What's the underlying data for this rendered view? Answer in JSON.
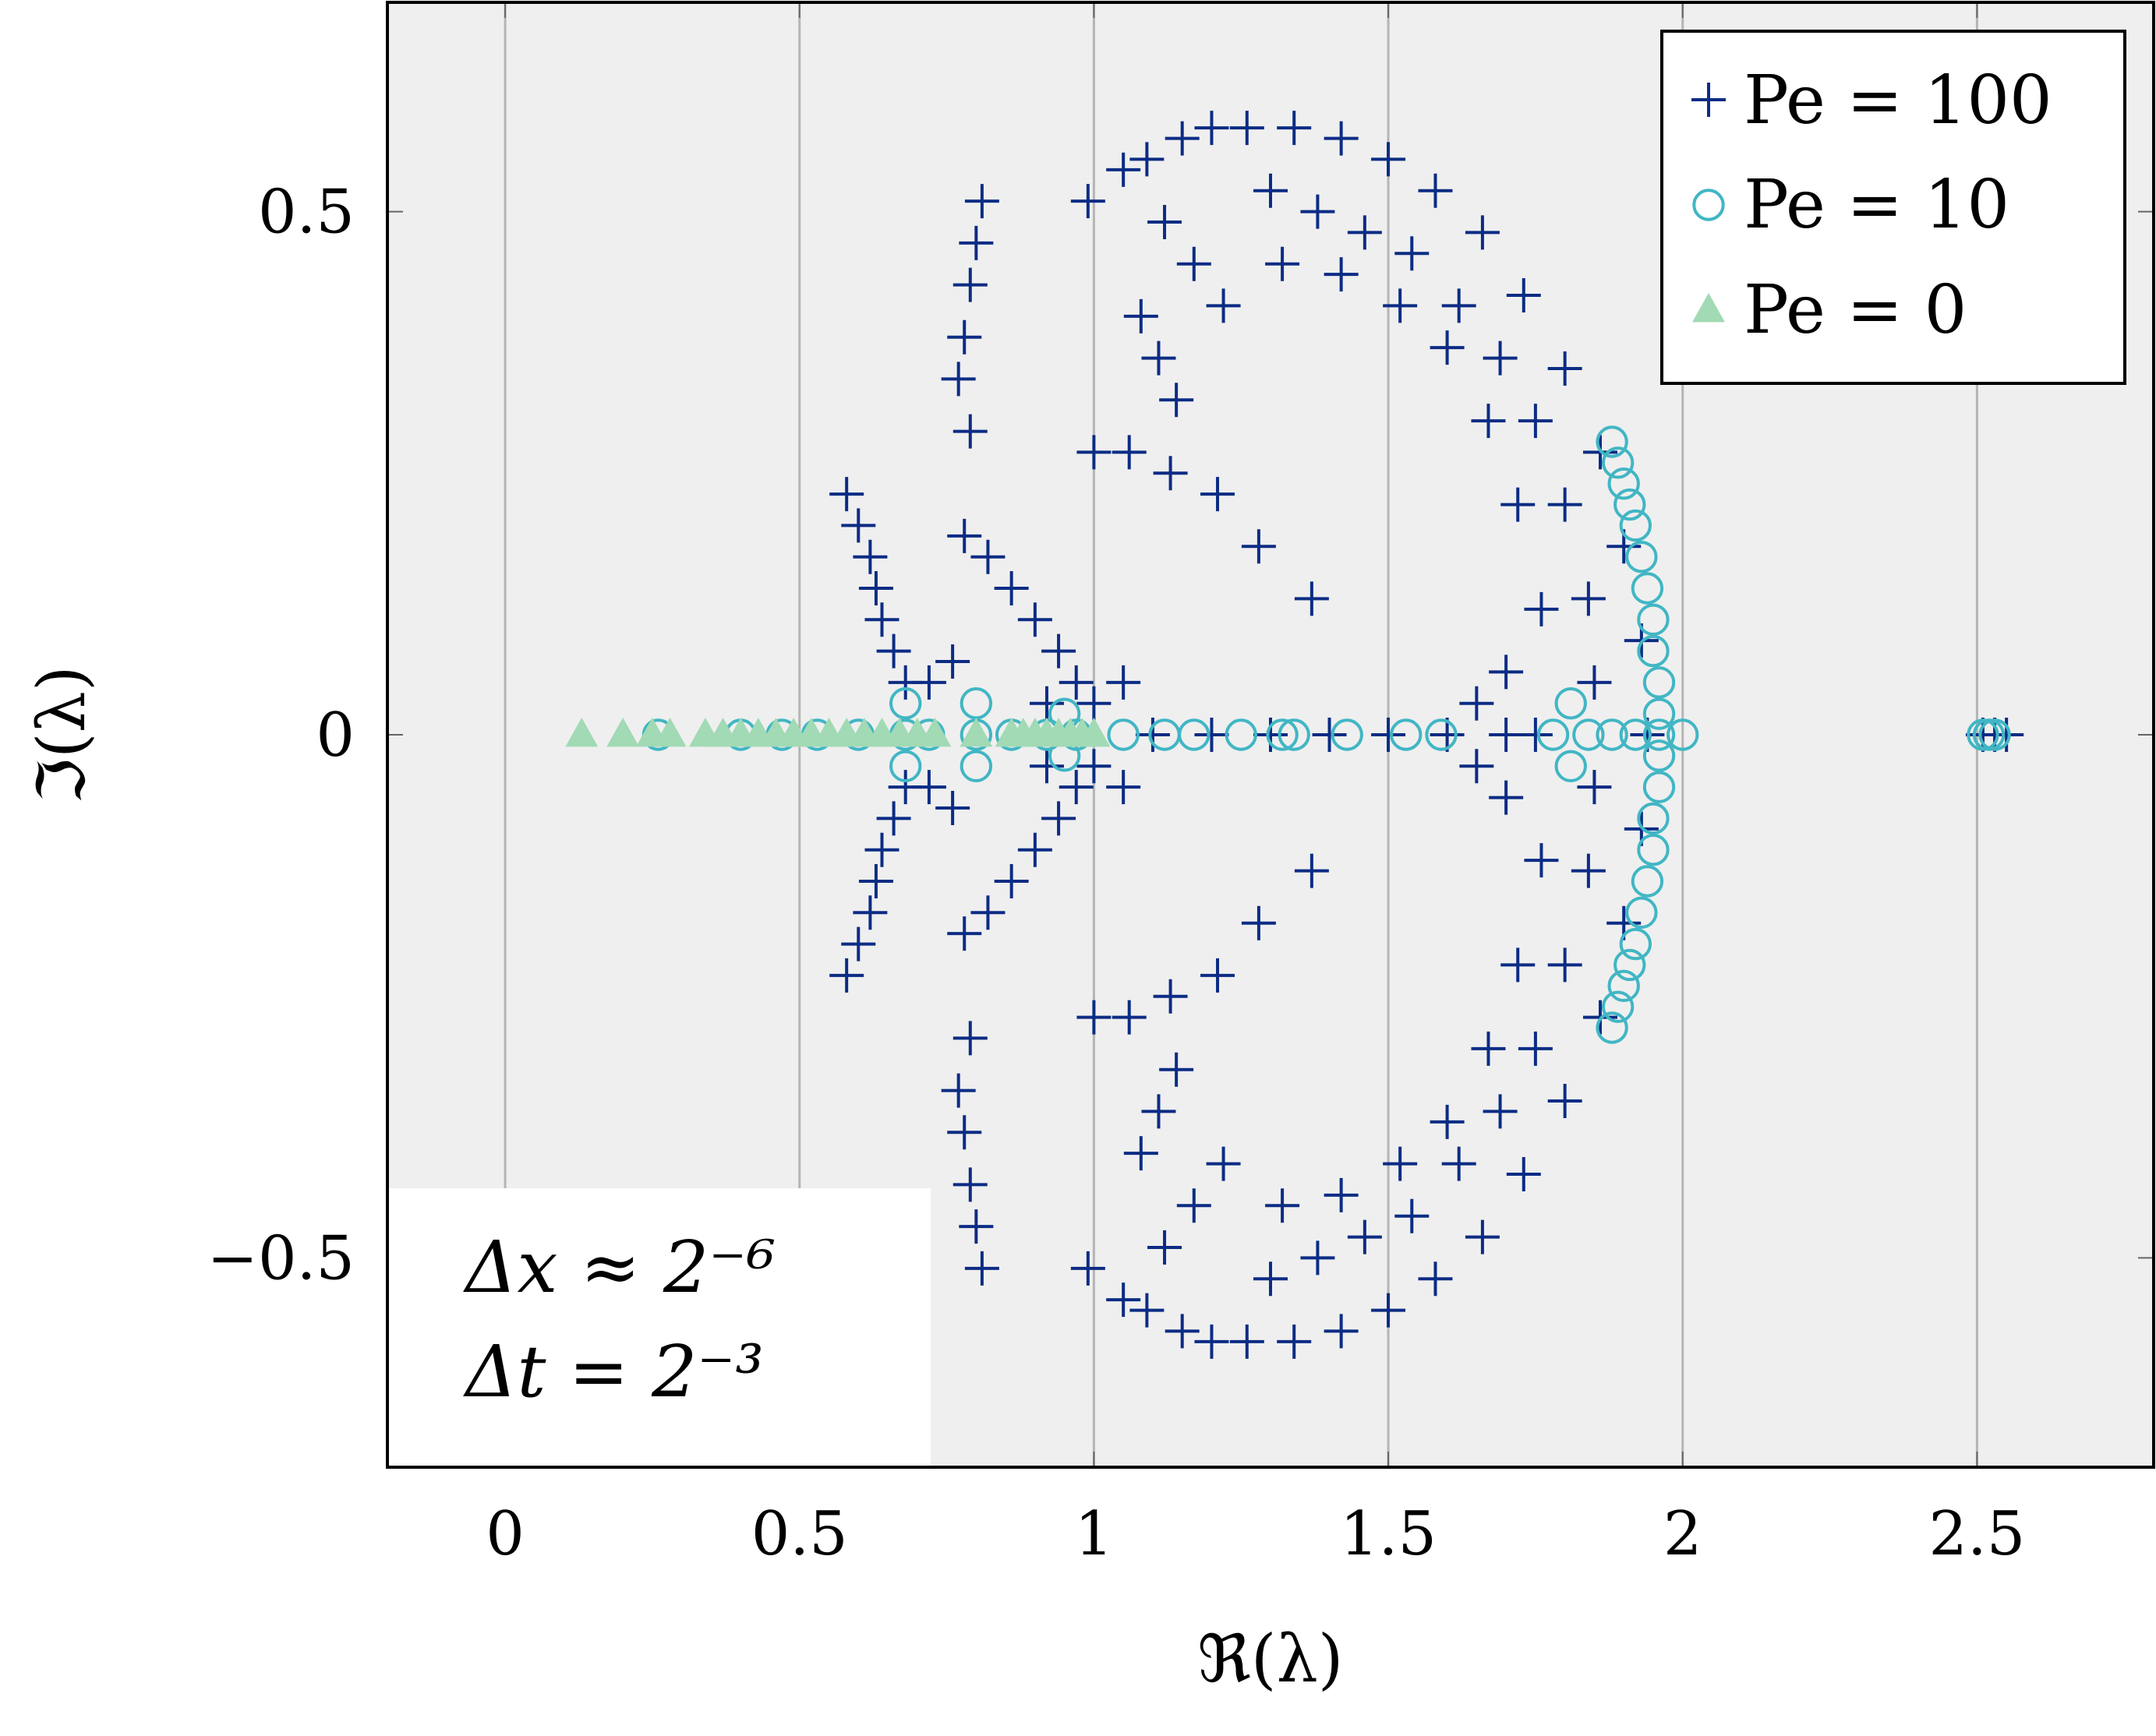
{
  "chart_data": {
    "type": "scatter",
    "xlabel": "ℜ(λ)",
    "ylabel": "ℑ(λ)",
    "xlim": [
      -0.2,
      2.8
    ],
    "ylim": [
      -0.7,
      0.7
    ],
    "x_ticks": [
      0,
      0.5,
      1,
      1.5,
      2,
      2.5
    ],
    "x_tick_labels": [
      "0",
      "0.5",
      "1",
      "1.5",
      "2",
      "2.5"
    ],
    "y_ticks": [
      -0.5,
      0,
      0.5
    ],
    "y_tick_labels": [
      "−0.5",
      "0",
      "0.5"
    ],
    "grid": "vertical-major",
    "background": "#efefef",
    "legend_position": "top-right",
    "annotations": [
      "Δx ≈ 2⁻⁶",
      "Δt = 2⁻³"
    ],
    "series": [
      {
        "name": "Pe = 100",
        "marker": "plus",
        "color": "#0c2c84",
        "points": [
          [
            0.81,
            0.51
          ],
          [
            0.8,
            0.47
          ],
          [
            0.79,
            0.43
          ],
          [
            0.78,
            0.38
          ],
          [
            0.77,
            0.34
          ],
          [
            0.79,
            0.29
          ],
          [
            0.99,
            0.51
          ],
          [
            1.0,
            0.27
          ],
          [
            1.06,
            0.27
          ],
          [
            1.13,
            0.25
          ],
          [
            1.21,
            0.23
          ],
          [
            1.28,
            0.18
          ],
          [
            1.37,
            0.13
          ],
          [
            0.58,
            0.23
          ],
          [
            0.6,
            0.2
          ],
          [
            0.62,
            0.17
          ],
          [
            0.63,
            0.14
          ],
          [
            0.64,
            0.11
          ],
          [
            0.66,
            0.08
          ],
          [
            0.68,
            0.05
          ],
          [
            0.78,
            0.19
          ],
          [
            0.82,
            0.17
          ],
          [
            0.86,
            0.14
          ],
          [
            0.9,
            0.11
          ],
          [
            0.94,
            0.08
          ],
          [
            0.97,
            0.05
          ],
          [
            1.0,
            0.03
          ],
          [
            0.72,
            0.05
          ],
          [
            0.76,
            0.07
          ],
          [
            0.92,
            0.03
          ],
          [
            1.05,
            0.05
          ],
          [
            0.58,
            -0.23
          ],
          [
            0.6,
            -0.2
          ],
          [
            0.62,
            -0.17
          ],
          [
            0.63,
            -0.14
          ],
          [
            0.64,
            -0.11
          ],
          [
            0.66,
            -0.08
          ],
          [
            0.68,
            -0.05
          ],
          [
            0.78,
            -0.19
          ],
          [
            0.82,
            -0.17
          ],
          [
            0.86,
            -0.14
          ],
          [
            0.9,
            -0.11
          ],
          [
            0.94,
            -0.08
          ],
          [
            0.97,
            -0.05
          ],
          [
            1.0,
            -0.03
          ],
          [
            0.72,
            -0.05
          ],
          [
            0.76,
            -0.07
          ],
          [
            0.92,
            -0.03
          ],
          [
            1.05,
            -0.05
          ],
          [
            0.81,
            -0.51
          ],
          [
            0.8,
            -0.47
          ],
          [
            0.79,
            -0.43
          ],
          [
            0.78,
            -0.38
          ],
          [
            0.77,
            -0.34
          ],
          [
            0.79,
            -0.29
          ],
          [
            0.99,
            -0.51
          ],
          [
            1.0,
            -0.27
          ],
          [
            1.06,
            -0.27
          ],
          [
            1.13,
            -0.25
          ],
          [
            1.21,
            -0.23
          ],
          [
            1.28,
            -0.18
          ],
          [
            1.37,
            -0.13
          ],
          [
            1.05,
            0.54
          ],
          [
            1.09,
            0.55
          ],
          [
            1.15,
            0.57
          ],
          [
            1.2,
            0.58
          ],
          [
            1.12,
            0.49
          ],
          [
            1.17,
            0.45
          ],
          [
            1.22,
            0.41
          ],
          [
            1.11,
            0.36
          ],
          [
            1.14,
            0.32
          ],
          [
            1.08,
            0.4
          ],
          [
            1.05,
            -0.54
          ],
          [
            1.09,
            -0.55
          ],
          [
            1.15,
            -0.57
          ],
          [
            1.2,
            -0.58
          ],
          [
            1.12,
            -0.49
          ],
          [
            1.17,
            -0.45
          ],
          [
            1.22,
            -0.41
          ],
          [
            1.11,
            -0.36
          ],
          [
            1.14,
            -0.32
          ],
          [
            1.08,
            -0.4
          ],
          [
            1.26,
            0.58
          ],
          [
            1.34,
            0.58
          ],
          [
            1.42,
            0.57
          ],
          [
            1.5,
            0.55
          ],
          [
            1.58,
            0.52
          ],
          [
            1.66,
            0.48
          ],
          [
            1.73,
            0.42
          ],
          [
            1.8,
            0.35
          ],
          [
            1.86,
            0.27
          ],
          [
            1.9,
            0.18
          ],
          [
            1.93,
            0.09
          ],
          [
            1.94,
            0.0
          ],
          [
            1.93,
            -0.09
          ],
          [
            1.9,
            -0.18
          ],
          [
            1.86,
            -0.27
          ],
          [
            1.8,
            -0.35
          ],
          [
            1.73,
            -0.42
          ],
          [
            1.66,
            -0.48
          ],
          [
            1.58,
            -0.52
          ],
          [
            1.5,
            -0.55
          ],
          [
            1.42,
            -0.57
          ],
          [
            1.34,
            -0.58
          ],
          [
            1.26,
            -0.58
          ],
          [
            1.3,
            0.52
          ],
          [
            1.38,
            0.5
          ],
          [
            1.46,
            0.48
          ],
          [
            1.54,
            0.46
          ],
          [
            1.62,
            0.41
          ],
          [
            1.69,
            0.36
          ],
          [
            1.75,
            0.3
          ],
          [
            1.8,
            0.22
          ],
          [
            1.84,
            0.13
          ],
          [
            1.85,
            0.05
          ],
          [
            1.3,
            -0.52
          ],
          [
            1.38,
            -0.5
          ],
          [
            1.46,
            -0.48
          ],
          [
            1.54,
            -0.46
          ],
          [
            1.62,
            -0.41
          ],
          [
            1.69,
            -0.36
          ],
          [
            1.75,
            -0.3
          ],
          [
            1.8,
            -0.22
          ],
          [
            1.84,
            -0.13
          ],
          [
            1.85,
            -0.05
          ],
          [
            1.32,
            0.45
          ],
          [
            1.42,
            0.44
          ],
          [
            1.52,
            0.41
          ],
          [
            1.6,
            0.37
          ],
          [
            1.67,
            0.3
          ],
          [
            1.72,
            0.22
          ],
          [
            1.76,
            0.12
          ],
          [
            1.7,
            0.06
          ],
          [
            1.65,
            0.03
          ],
          [
            1.32,
            -0.45
          ],
          [
            1.42,
            -0.44
          ],
          [
            1.52,
            -0.41
          ],
          [
            1.6,
            -0.37
          ],
          [
            1.67,
            -0.3
          ],
          [
            1.72,
            -0.22
          ],
          [
            1.76,
            -0.12
          ],
          [
            1.7,
            -0.06
          ],
          [
            1.65,
            -0.03
          ],
          [
            1.1,
            0.0
          ],
          [
            1.2,
            0.0
          ],
          [
            1.3,
            0.0
          ],
          [
            1.4,
            0.0
          ],
          [
            1.5,
            0.0
          ],
          [
            1.6,
            0.0
          ],
          [
            1.7,
            0.0
          ],
          [
            1.75,
            0.0
          ],
          [
            2.51,
            0.0
          ],
          [
            2.53,
            0.0
          ],
          [
            2.55,
            0.0
          ]
        ]
      },
      {
        "name": "Pe = 10",
        "marker": "circle",
        "color": "#41b6c4",
        "points": [
          [
            0.26,
            0.0
          ],
          [
            0.4,
            0.0
          ],
          [
            0.47,
            0.0
          ],
          [
            0.53,
            0.0
          ],
          [
            0.6,
            0.0
          ],
          [
            0.68,
            0.0
          ],
          [
            0.72,
            0.0
          ],
          [
            0.8,
            0.0
          ],
          [
            0.86,
            0.0
          ],
          [
            0.92,
            0.0
          ],
          [
            0.97,
            0.0
          ],
          [
            1.05,
            0.0
          ],
          [
            1.12,
            0.0
          ],
          [
            1.17,
            0.0
          ],
          [
            1.25,
            0.0
          ],
          [
            1.32,
            0.0
          ],
          [
            1.34,
            0.0
          ],
          [
            1.43,
            0.0
          ],
          [
            1.53,
            0.0
          ],
          [
            1.59,
            0.0
          ],
          [
            0.68,
            0.03
          ],
          [
            0.68,
            -0.03
          ],
          [
            0.8,
            0.03
          ],
          [
            0.8,
            -0.03
          ],
          [
            0.95,
            0.02
          ],
          [
            0.95,
            -0.02
          ],
          [
            1.78,
            0.0
          ],
          [
            1.81,
            0.03
          ],
          [
            1.81,
            -0.03
          ],
          [
            1.84,
            0.0
          ],
          [
            1.88,
            0.0
          ],
          [
            1.92,
            0.0
          ],
          [
            1.96,
            0.0
          ],
          [
            2.0,
            0.0
          ],
          [
            1.88,
            0.28
          ],
          [
            1.89,
            0.26
          ],
          [
            1.9,
            0.24
          ],
          [
            1.91,
            0.22
          ],
          [
            1.92,
            0.2
          ],
          [
            1.93,
            0.17
          ],
          [
            1.94,
            0.14
          ],
          [
            1.95,
            0.11
          ],
          [
            1.95,
            0.08
          ],
          [
            1.96,
            0.05
          ],
          [
            1.96,
            0.02
          ],
          [
            1.96,
            -0.02
          ],
          [
            1.96,
            -0.05
          ],
          [
            1.95,
            -0.08
          ],
          [
            1.95,
            -0.11
          ],
          [
            1.94,
            -0.14
          ],
          [
            1.93,
            -0.17
          ],
          [
            1.92,
            -0.2
          ],
          [
            1.91,
            -0.22
          ],
          [
            1.9,
            -0.24
          ],
          [
            1.89,
            -0.26
          ],
          [
            1.88,
            -0.28
          ],
          [
            2.51,
            0.0
          ],
          [
            2.52,
            0.0
          ],
          [
            2.53,
            0.0
          ]
        ]
      },
      {
        "name": "Pe = 0",
        "marker": "triangle",
        "color": "#a1dab4",
        "points": [
          [
            0.13,
            0.0
          ],
          [
            0.2,
            0.0
          ],
          [
            0.25,
            0.0
          ],
          [
            0.28,
            0.0
          ],
          [
            0.34,
            0.0
          ],
          [
            0.37,
            0.0
          ],
          [
            0.4,
            0.0
          ],
          [
            0.43,
            0.0
          ],
          [
            0.46,
            0.0
          ],
          [
            0.49,
            0.0
          ],
          [
            0.52,
            0.0
          ],
          [
            0.55,
            0.0
          ],
          [
            0.58,
            0.0
          ],
          [
            0.61,
            0.0
          ],
          [
            0.64,
            0.0
          ],
          [
            0.67,
            0.0
          ],
          [
            0.7,
            0.0
          ],
          [
            0.73,
            0.0
          ],
          [
            0.8,
            0.0
          ],
          [
            0.86,
            0.0
          ],
          [
            0.88,
            0.0
          ],
          [
            0.9,
            0.0
          ],
          [
            0.92,
            0.0
          ],
          [
            0.94,
            0.0
          ],
          [
            0.96,
            0.0
          ],
          [
            0.98,
            0.0
          ],
          [
            1.0,
            0.0
          ]
        ]
      }
    ]
  }
}
